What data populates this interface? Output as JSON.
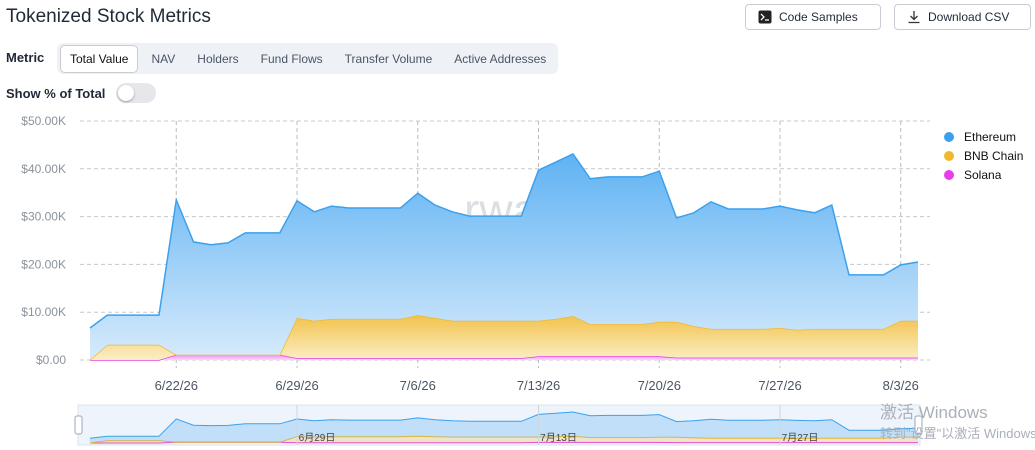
{
  "header": {
    "title": "Tokenized Stock Metrics",
    "buttons": [
      "Code Samples",
      "Download CSV"
    ]
  },
  "controls": {
    "metric_label": "Metric",
    "tabs": [
      "Total Value",
      "NAV",
      "Holders",
      "Fund Flows",
      "Transfer Volume",
      "Active Addresses"
    ],
    "active_tab": "Total Value",
    "toggle_label": "Show % of Total"
  },
  "watermark": "rwa.xyz",
  "system_overlay": [
    "激活 Windows",
    "转到\"设置\"以激活 Windows"
  ],
  "chart_data": {
    "type": "stacked-area",
    "x": [
      "2026-06-17",
      "2026-06-18",
      "2026-06-19",
      "2026-06-20",
      "2026-06-21",
      "2026-06-22",
      "2026-06-23",
      "2026-06-24",
      "2026-06-25",
      "2026-06-26",
      "2026-06-27",
      "2026-06-28",
      "2026-06-29",
      "2026-06-30",
      "2026-07-01",
      "2026-07-02",
      "2026-07-03",
      "2026-07-04",
      "2026-07-05",
      "2026-07-06",
      "2026-07-07",
      "2026-07-08",
      "2026-07-09",
      "2026-07-10",
      "2026-07-11",
      "2026-07-12",
      "2026-07-13",
      "2026-07-14",
      "2026-07-15",
      "2026-07-16",
      "2026-07-17",
      "2026-07-18",
      "2026-07-19",
      "2026-07-20",
      "2026-07-21",
      "2026-07-22",
      "2026-07-23",
      "2026-07-24",
      "2026-07-25",
      "2026-07-26",
      "2026-07-27",
      "2026-07-28",
      "2026-07-29",
      "2026-07-30",
      "2026-07-31",
      "2026-08-01",
      "2026-08-02",
      "2026-08-03",
      "2026-08-04"
    ],
    "series": [
      {
        "name": "Ethereum",
        "color": "#3ba1ee",
        "values": [
          6700,
          6200,
          6200,
          6200,
          6200,
          32400,
          23600,
          23000,
          23400,
          25500,
          25500,
          25500,
          24500,
          22800,
          23600,
          23200,
          23200,
          23200,
          23200,
          25500,
          23600,
          22800,
          21900,
          21900,
          21900,
          21900,
          31500,
          32800,
          33900,
          30400,
          30800,
          30800,
          30800,
          31500,
          21700,
          23700,
          26600,
          25100,
          25100,
          25100,
          25500,
          25100,
          24300,
          25900,
          11300,
          11300,
          11300,
          11700,
          12300
        ]
      },
      {
        "name": "BNB Chain",
        "color": "#f0b92c",
        "values": [
          0,
          3200,
          3200,
          3200,
          3200,
          0,
          0,
          0,
          0,
          0,
          0,
          0,
          8400,
          7800,
          8200,
          8200,
          8200,
          8200,
          8200,
          9000,
          8400,
          7800,
          7800,
          7800,
          7800,
          7800,
          7400,
          7800,
          8400,
          6700,
          6700,
          6700,
          6700,
          7200,
          7500,
          6600,
          6000,
          6000,
          6000,
          6000,
          6200,
          5800,
          6000,
          6000,
          6000,
          6000,
          6000,
          7700,
          7700
        ]
      },
      {
        "name": "Solana",
        "color": "#e83ee8",
        "values": [
          0,
          0,
          0,
          0,
          0,
          1100,
          1100,
          1100,
          1100,
          1100,
          1100,
          1100,
          400,
          400,
          400,
          400,
          400,
          400,
          400,
          400,
          400,
          400,
          400,
          400,
          400,
          400,
          800,
          800,
          800,
          800,
          800,
          800,
          800,
          800,
          500,
          500,
          500,
          500,
          500,
          500,
          500,
          500,
          500,
          500,
          500,
          500,
          500,
          500,
          500
        ]
      }
    ],
    "xlim": [
      "2026-06-17",
      "2026-08-04"
    ],
    "xticks": [
      {
        "value": "2026-06-22",
        "label": "6/22/26"
      },
      {
        "value": "2026-06-29",
        "label": "6/29/26"
      },
      {
        "value": "2026-07-06",
        "label": "7/6/26"
      },
      {
        "value": "2026-07-13",
        "label": "7/13/26"
      },
      {
        "value": "2026-07-20",
        "label": "7/20/26"
      },
      {
        "value": "2026-07-27",
        "label": "7/27/26"
      },
      {
        "value": "2026-08-03",
        "label": "8/3/26"
      }
    ],
    "ylim": [
      0,
      50000
    ],
    "yticks": [
      {
        "value": 0,
        "label": "$0.00"
      },
      {
        "value": 10000,
        "label": "$10.00K"
      },
      {
        "value": 20000,
        "label": "$20.00K"
      },
      {
        "value": 30000,
        "label": "$30.00K"
      },
      {
        "value": 40000,
        "label": "$40.00K"
      },
      {
        "value": 50000,
        "label": "$50.00K"
      }
    ],
    "grid": true,
    "legend": "top-right",
    "navigator_ticks": [
      {
        "value": "2026-06-29",
        "label": "6月29日"
      },
      {
        "value": "2026-07-13",
        "label": "7月13日"
      },
      {
        "value": "2026-07-27",
        "label": "7月27日"
      }
    ]
  }
}
